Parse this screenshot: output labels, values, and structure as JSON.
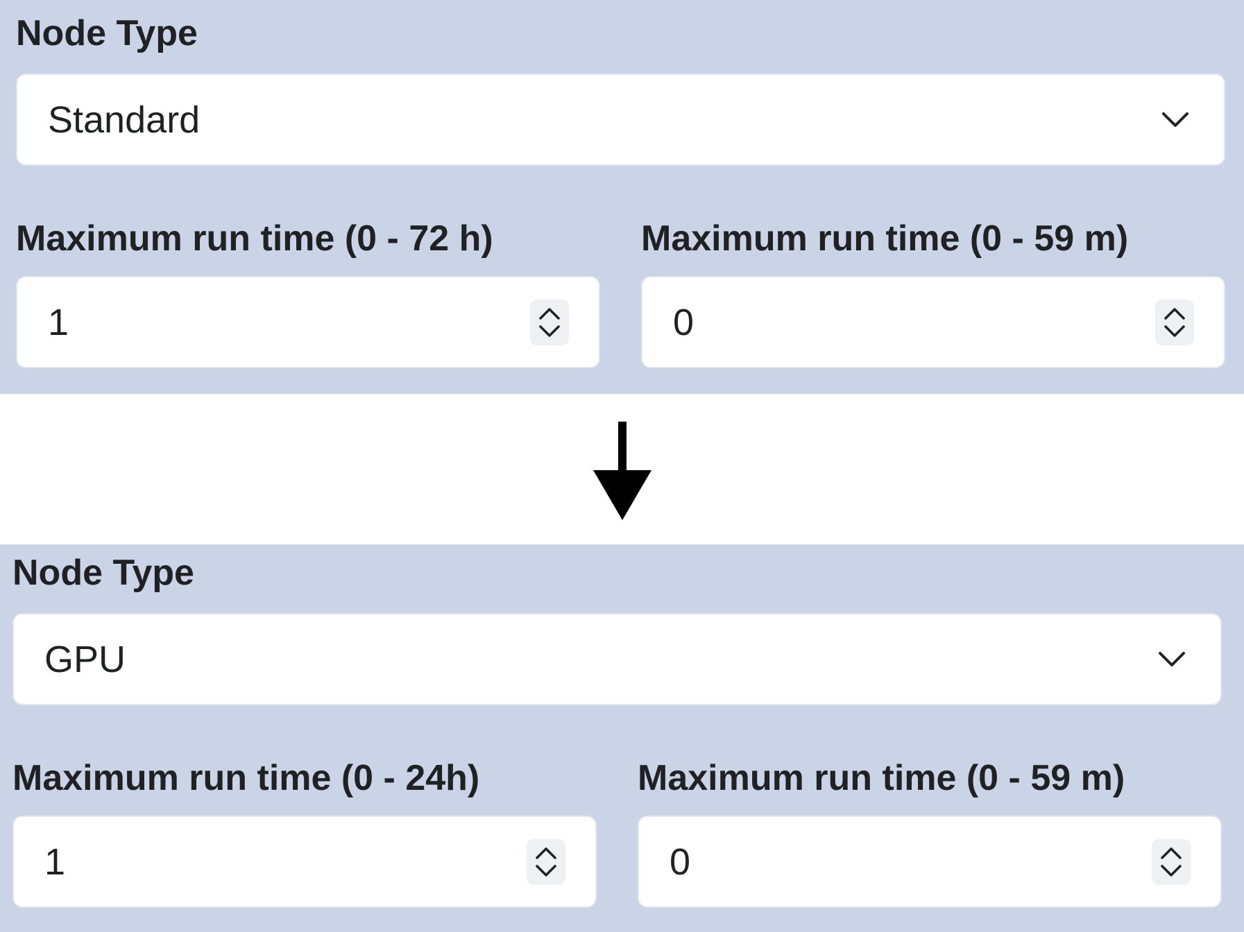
{
  "before": {
    "node_type_label": "Node Type",
    "node_type_value": "Standard",
    "hours_label": "Maximum run time (0 - 72 h)",
    "hours_value": "1",
    "minutes_label": "Maximum run time (0 - 59 m)",
    "minutes_value": "0"
  },
  "after": {
    "node_type_label": "Node Type",
    "node_type_value": "GPU",
    "hours_label": "Maximum run time (0 - 24h)",
    "hours_value": "1",
    "minutes_label": "Maximum run time (0 - 59 m)",
    "minutes_value": "0"
  },
  "icons": {
    "dropdown": "chevron-down-icon",
    "stepper": "stepper-up-down-icon",
    "transition": "arrow-down-icon"
  },
  "colors": {
    "panel_background": "#cad4e6",
    "field_background": "#ffffff",
    "text": "#1f2125",
    "arrow": "#000000"
  }
}
